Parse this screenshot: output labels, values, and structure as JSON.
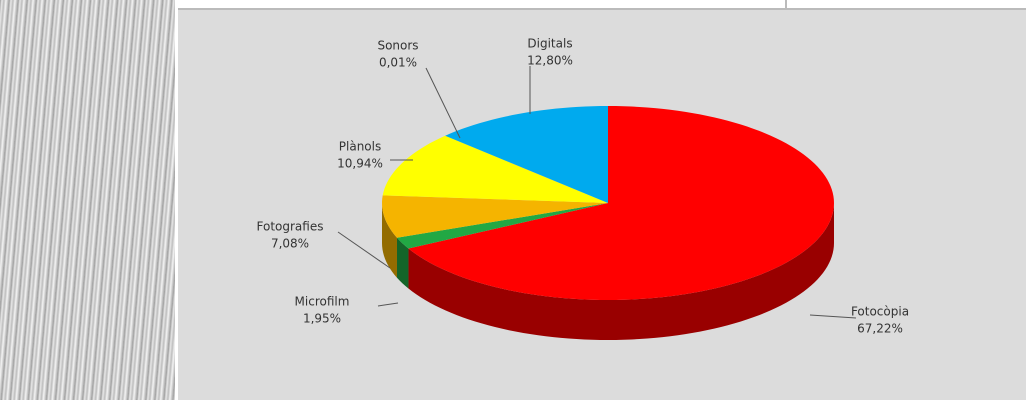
{
  "chart_data": {
    "type": "pie",
    "categories": [
      "Fotocòpia",
      "Microfilm",
      "Fotografies",
      "Plànols",
      "Sonors",
      "Digitals"
    ],
    "values": [
      67.22,
      1.95,
      7.08,
      10.94,
      0.01,
      12.8
    ],
    "value_labels": [
      "67,22%",
      "1,95%",
      "7,08%",
      "10,94%",
      "0,01%",
      "12,80%"
    ],
    "colors": [
      "#ff0000",
      "#22a844",
      "#f5b400",
      "#ffff00",
      "#9933cc",
      "#00aaee"
    ]
  }
}
